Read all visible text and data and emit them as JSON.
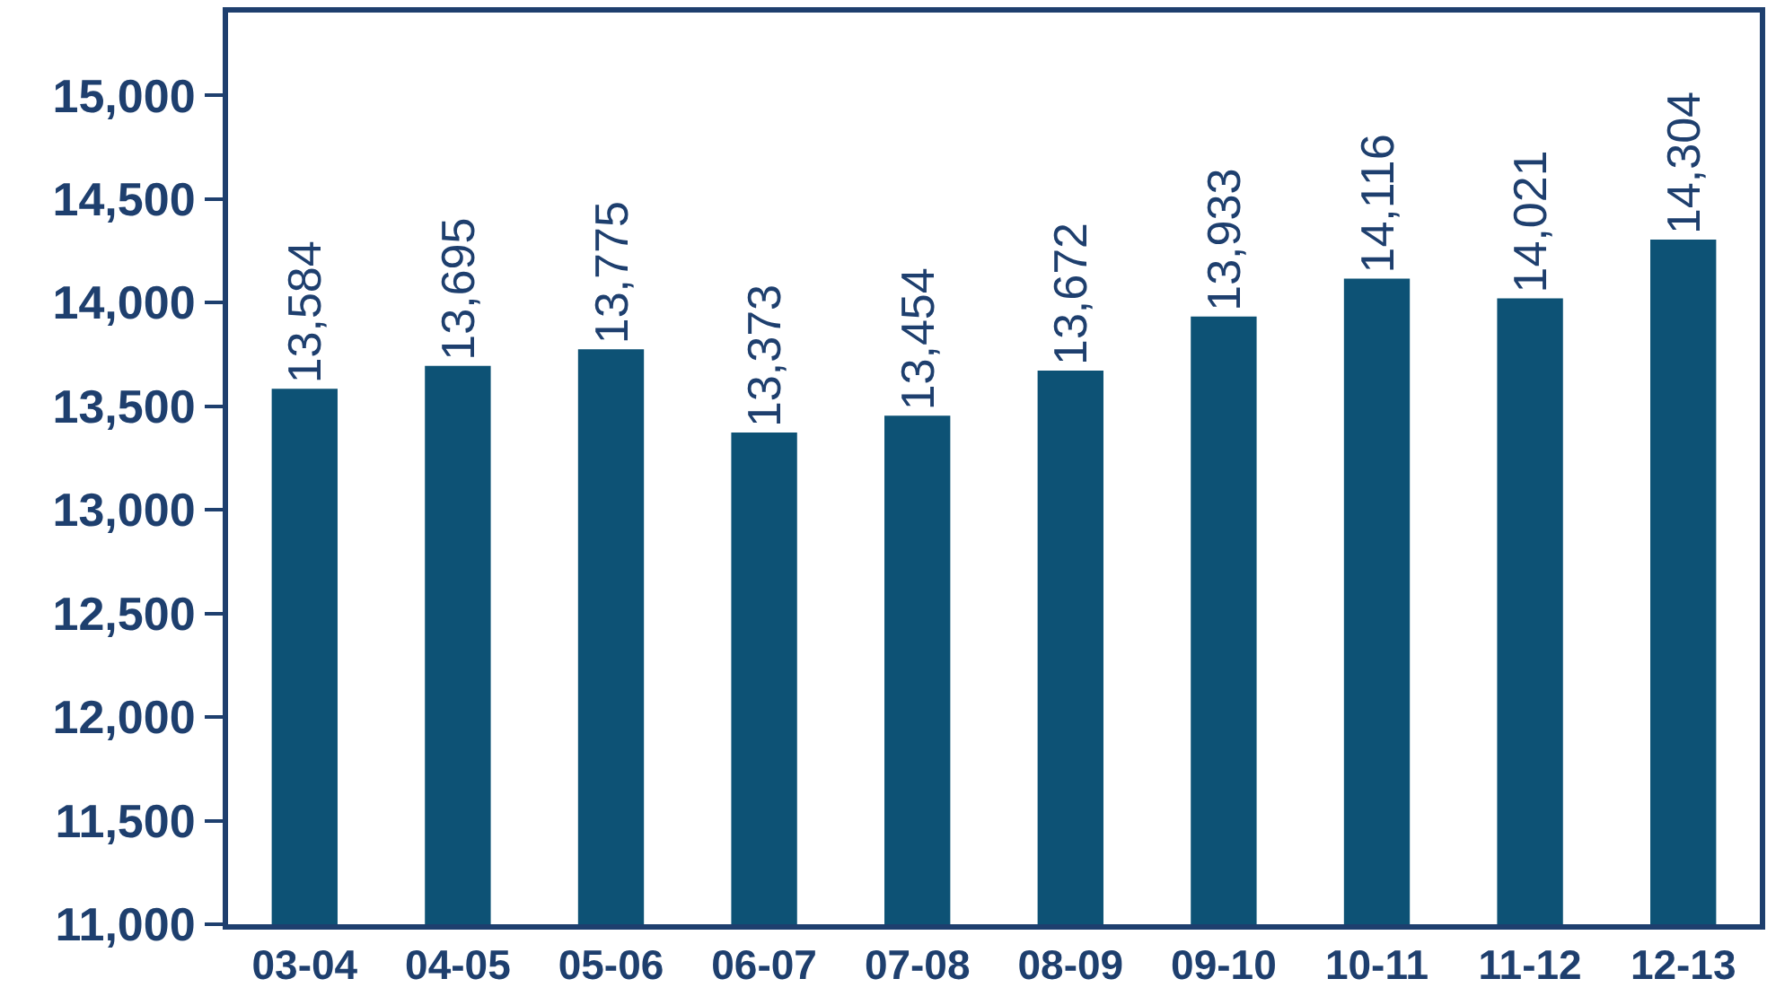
{
  "chart_data": {
    "type": "bar",
    "categories": [
      "03-04",
      "04-05",
      "05-06",
      "06-07",
      "07-08",
      "08-09",
      "09-10",
      "10-11",
      "11-12",
      "12-13"
    ],
    "values": [
      13584,
      13695,
      13775,
      13373,
      13454,
      13672,
      13933,
      14116,
      14021,
      14304
    ],
    "value_labels": [
      "13,584",
      "13,695",
      "13,775",
      "13,373",
      "13,454",
      "13,672",
      "13,933",
      "14,116",
      "14,021",
      "14,304"
    ],
    "color": "#0d5275",
    "ylim": [
      11000,
      15400
    ],
    "yticks": [
      {
        "value": 11000,
        "label": "11,000"
      },
      {
        "value": 11500,
        "label": "11,500"
      },
      {
        "value": 12000,
        "label": "12,000"
      },
      {
        "value": 12500,
        "label": "12,500"
      },
      {
        "value": 13000,
        "label": "13,000"
      },
      {
        "value": 13500,
        "label": "13,500"
      },
      {
        "value": 14000,
        "label": "14,000"
      },
      {
        "value": 14500,
        "label": "14,500"
      },
      {
        "value": 15000,
        "label": "15,000"
      }
    ]
  }
}
